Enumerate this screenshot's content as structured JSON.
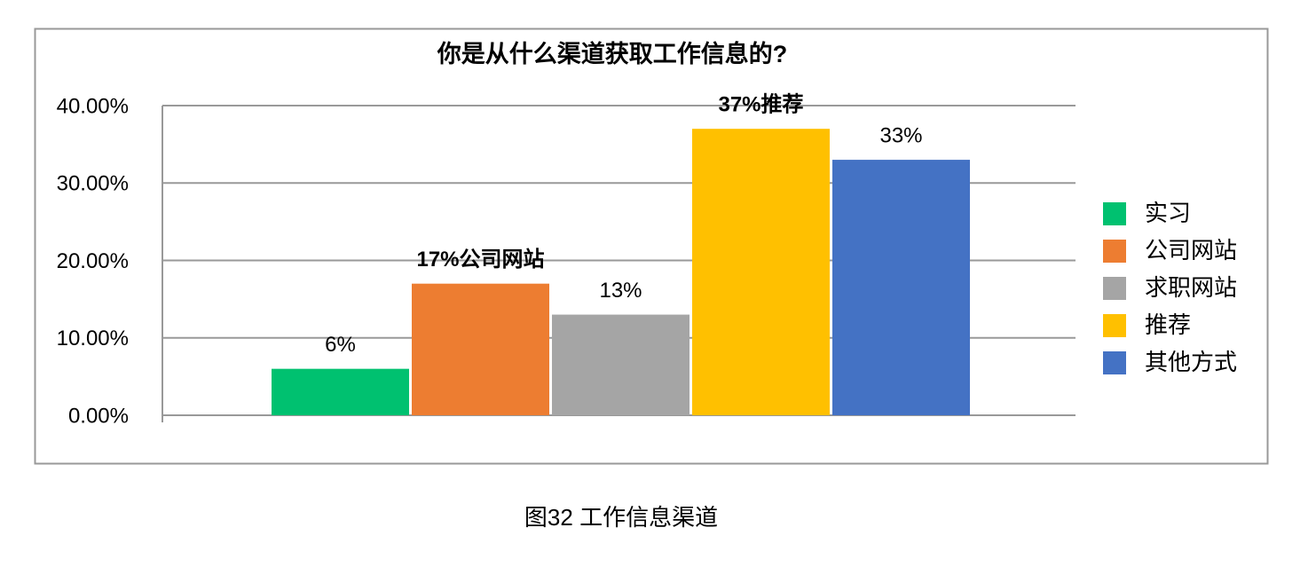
{
  "chart_data": {
    "type": "bar",
    "title": "你是从什么渠道获取工作信息的?",
    "categories": [
      null
    ],
    "series": [
      {
        "name": "实习",
        "color": "#00c170",
        "values": [
          6
        ],
        "value_labels": [
          "6%"
        ]
      },
      {
        "name": "公司网站",
        "color": "#ed7d31",
        "values": [
          17
        ],
        "value_labels": [
          "17%公司网站"
        ]
      },
      {
        "name": "求职网站",
        "color": "#a5a5a5",
        "values": [
          13
        ],
        "value_labels": [
          "13%"
        ]
      },
      {
        "name": "推荐",
        "color": "#ffc000",
        "values": [
          37
        ],
        "value_labels": [
          "37%推荐"
        ]
      },
      {
        "name": "其他方式",
        "color": "#4472c4",
        "values": [
          33
        ],
        "value_labels": [
          "33%"
        ]
      }
    ],
    "ylim": [
      0,
      40
    ],
    "yticks": [
      {
        "value": 0,
        "label": "0.00%"
      },
      {
        "value": 10,
        "label": "10.00%"
      },
      {
        "value": 20,
        "label": "20.00%"
      },
      {
        "value": 30,
        "label": "30.00%"
      },
      {
        "value": 40,
        "label": "40.00%"
      }
    ],
    "grid": true,
    "legend": "right"
  },
  "caption": "图32 工作信息渠道"
}
